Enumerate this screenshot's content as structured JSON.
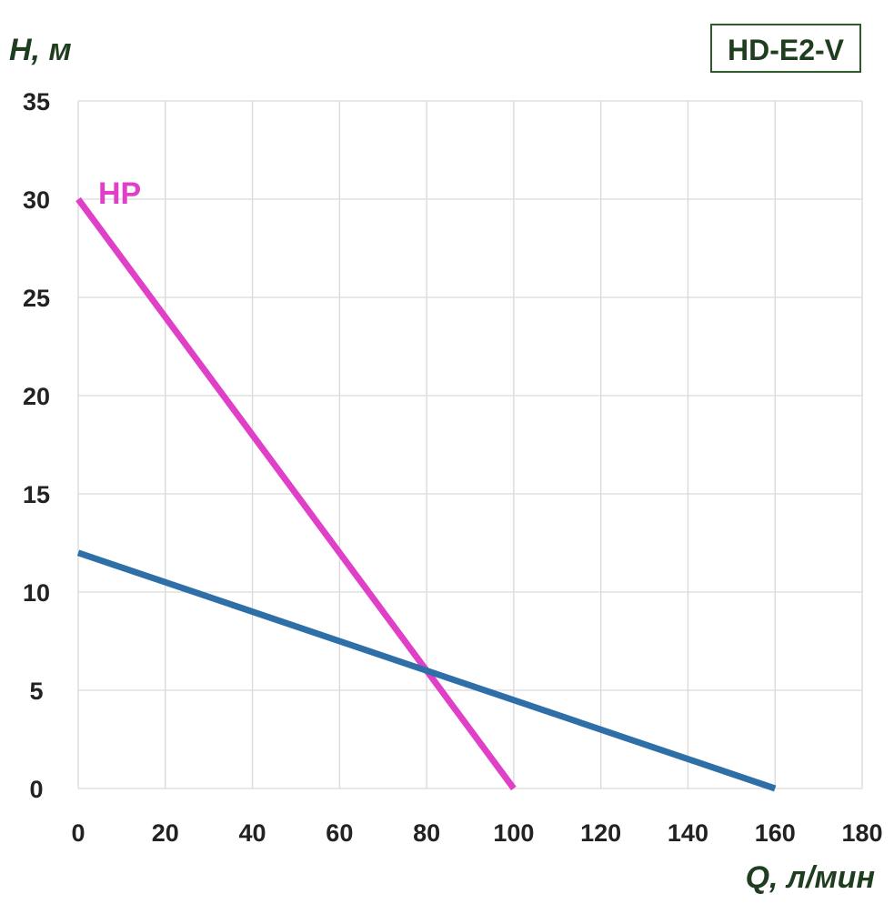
{
  "chart_data": {
    "type": "line",
    "title": "HD-E2-V",
    "xlabel": "Q, л/мин",
    "ylabel": "H, м",
    "xlim": [
      0,
      180
    ],
    "ylim": [
      0,
      35
    ],
    "xticks": [
      0,
      20,
      40,
      60,
      80,
      100,
      120,
      140,
      160,
      180
    ],
    "yticks": [
      0,
      5,
      10,
      15,
      20,
      25,
      30,
      35
    ],
    "grid": true,
    "series": [
      {
        "name": "HP",
        "color": "#e040c8",
        "x": [
          0,
          100
        ],
        "y": [
          30,
          0
        ]
      },
      {
        "color": "#2f6fa8",
        "x": [
          0,
          160
        ],
        "y": [
          12,
          0
        ]
      }
    ],
    "colors": {
      "grid": "#d9d9d9",
      "label_text": "#1f3d1f",
      "tick_text": "#222222",
      "title_border": "#2e5a2e"
    }
  }
}
